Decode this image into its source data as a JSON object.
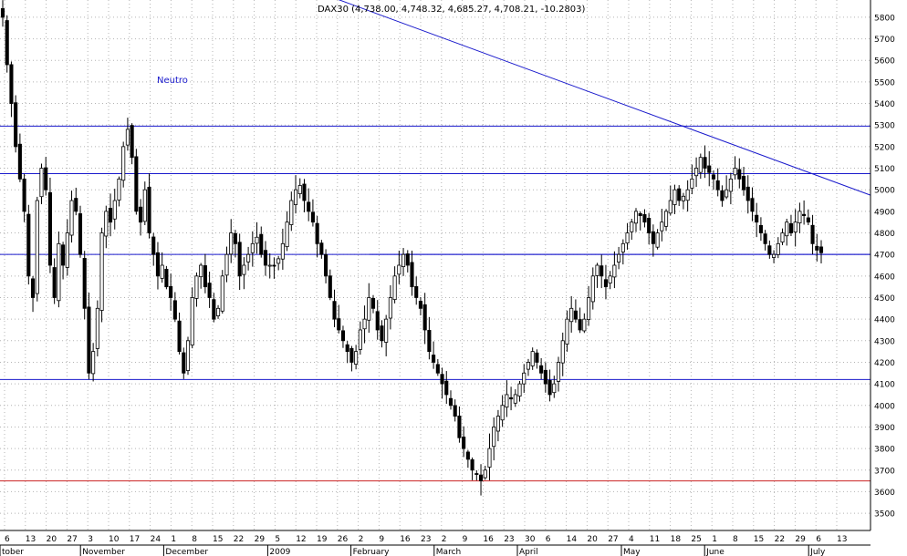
{
  "chart_data": {
    "type": "candlestick",
    "title": "DAX30 (4,738.00, 4,748.32, 4,685.27, 4,708.21, -10.2803)",
    "annotation": "Neutro",
    "ylim": [
      3420,
      5880
    ],
    "y_ticks": [
      3500,
      3600,
      3700,
      3800,
      3900,
      4000,
      4100,
      4200,
      4300,
      4400,
      4500,
      4600,
      4700,
      4800,
      4900,
      5000,
      5100,
      5200,
      5300,
      5400,
      5500,
      5600,
      5700,
      5800
    ],
    "x_day_ticks": [
      "6",
      "13",
      "20",
      "27",
      "3",
      "10",
      "17",
      "24",
      "1",
      "8",
      "15",
      "22",
      "29",
      "5",
      "12",
      "19",
      "26",
      "2",
      "9",
      "16",
      "23",
      "2",
      "9",
      "16",
      "23",
      "30",
      "6",
      "14",
      "20",
      "27",
      "4",
      "11",
      "18",
      "25",
      "1",
      "8",
      "15",
      "22",
      "29",
      "6",
      "13"
    ],
    "x_month_labels": [
      "tober",
      "November",
      "December",
      "2009",
      "February",
      "March",
      "April",
      "May",
      "June",
      "July"
    ],
    "horizontal_levels": [
      {
        "value": 5295,
        "color": "#1a1acc"
      },
      {
        "value": 5075,
        "color": "#1a1acc"
      },
      {
        "value": 4700,
        "color": "#1a1acc"
      },
      {
        "value": 4120,
        "color": "#1a1acc"
      },
      {
        "value": 3650,
        "color": "#cc2222"
      }
    ],
    "trendline": {
      "start_day": 80,
      "start_value": 5890,
      "end_day": 257,
      "end_value": 4975,
      "color": "#1a1acc"
    },
    "grid": true,
    "colors": {
      "up": "#ffffff",
      "down": "#000000",
      "wick": "#000000",
      "grid": "#b4b4b4",
      "axis_text": "#000000"
    },
    "closes": [
      5800,
      5580,
      5400,
      5200,
      5050,
      4900,
      4600,
      4500,
      4950,
      5100,
      5000,
      4650,
      4500,
      4750,
      4650,
      4800,
      4950,
      4900,
      4700,
      4450,
      4150,
      4250,
      4450,
      4800,
      4900,
      4850,
      4950,
      5050,
      5200,
      5280,
      5150,
      4900,
      4850,
      5000,
      4800,
      4700,
      4600,
      4650,
      4550,
      4500,
      4400,
      4250,
      4150,
      4300,
      4500,
      4600,
      4650,
      4550,
      4500,
      4400,
      4450,
      4600,
      4700,
      4800,
      4750,
      4600,
      4650,
      4700,
      4750,
      4780,
      4700,
      4650,
      4650,
      4650,
      4680,
      4750,
      4850,
      4950,
      5000,
      5020,
      4950,
      4900,
      4850,
      4750,
      4700,
      4600,
      4500,
      4400,
      4350,
      4300,
      4250,
      4200,
      4250,
      4350,
      4400,
      4500,
      4450,
      4350,
      4300,
      4400,
      4500,
      4600,
      4650,
      4700,
      4650,
      4550,
      4500,
      4450,
      4350,
      4250,
      4200,
      4150,
      4100,
      4050,
      4000,
      3950,
      3850,
      3800,
      3750,
      3700,
      3680,
      3650,
      3700,
      3800,
      3900,
      3950,
      4000,
      4050,
      4030,
      4050,
      4100,
      4150,
      4200,
      4250,
      4200,
      4150,
      4100,
      4050,
      4100,
      4200,
      4300,
      4400,
      4450,
      4400,
      4350,
      4400,
      4500,
      4600,
      4650,
      4600,
      4550,
      4600,
      4650,
      4700,
      4750,
      4800,
      4850,
      4900,
      4880,
      4850,
      4800,
      4750,
      4800,
      4850,
      4900,
      4950,
      5000,
      4950,
      4970,
      5000,
      5050,
      5100,
      5150,
      5100,
      5080,
      5050,
      5000,
      4950,
      5000,
      5050,
      5100,
      5050,
      5000,
      4950,
      4900,
      4850,
      4800,
      4750,
      4700,
      4700,
      4750,
      4800,
      4850,
      4800,
      4850,
      4900,
      4880,
      4850,
      4750,
      4720,
      4708
    ]
  }
}
